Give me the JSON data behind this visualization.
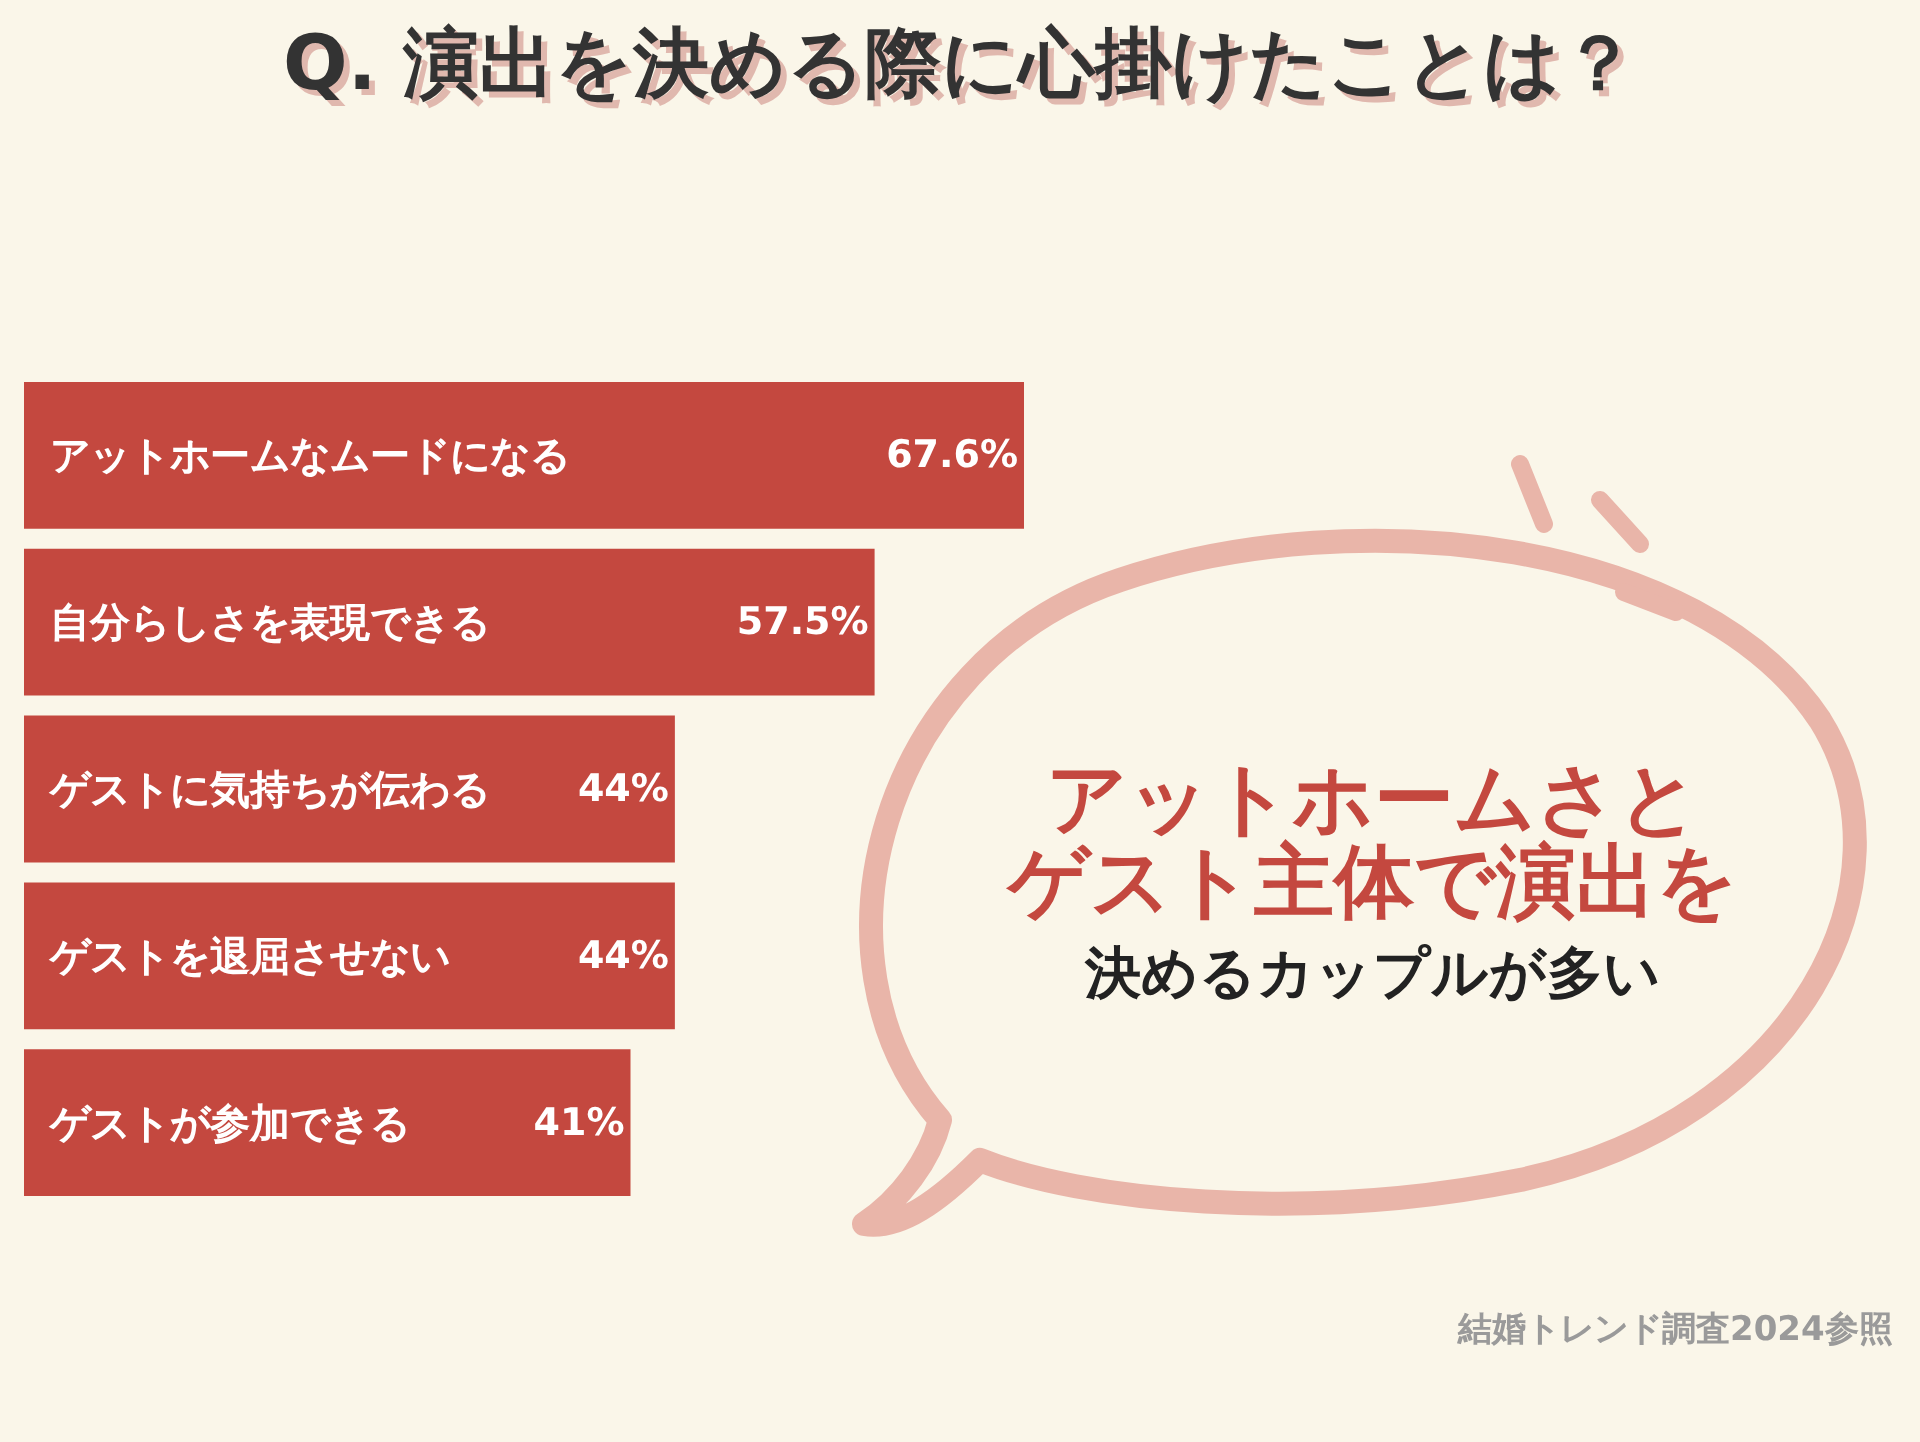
{
  "chart_data": {
    "type": "bar",
    "orientation": "horizontal",
    "title": "Q. 演出を決める際に心掛けたことは？",
    "categories": [
      "アットホームなムードになる",
      "自分らしさを表現できる",
      "ゲストに気持ちが伝わる",
      "ゲストを退屈させない",
      "ゲストが参加できる"
    ],
    "values": [
      67.6,
      57.5,
      44,
      44,
      41
    ],
    "value_labels": [
      "67.6%",
      "57.5%",
      "44%",
      "44%",
      "41%"
    ],
    "color": "#c4483f",
    "grid": false,
    "annotations": [
      "アットホームさと",
      "ゲスト主体で演出を",
      "決めるカップルが多い",
      "結婚トレンド調査2024参照"
    ]
  }
}
